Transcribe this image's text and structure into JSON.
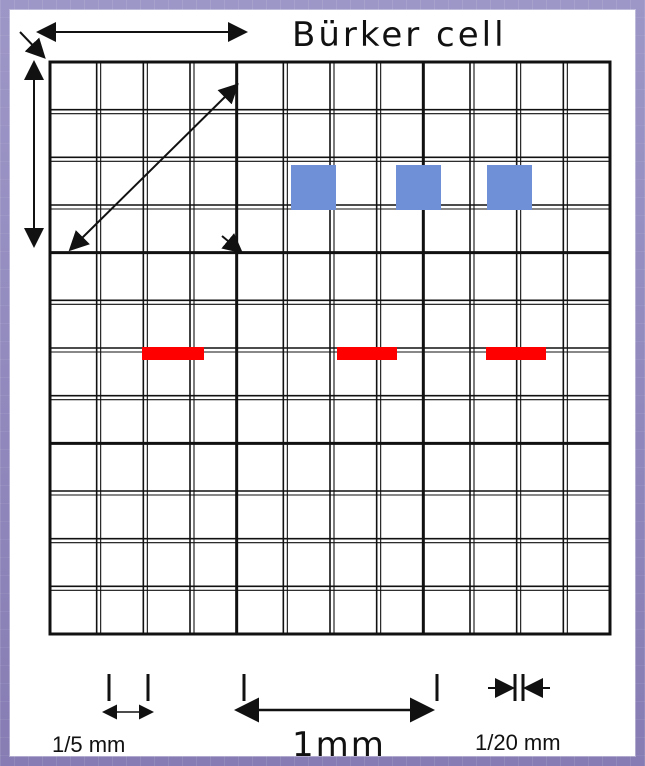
{
  "diagram": {
    "title": "Bürker cell",
    "labels": {
      "one_fifth_mm": "1/5 mm",
      "one_mm": "1mm",
      "one_twentieth_mm": "1/20 mm"
    },
    "colors": {
      "background": "#8f88ba",
      "paper": "#ffffff",
      "grid": "#111111",
      "highlight_squares": "#6f8fd6",
      "highlight_bars": "#ff0000"
    },
    "icons": {
      "left_measure": "vertical-double-arrow",
      "top_measure": "horizontal-double-arrow",
      "diagonal_measure": "diagonal-double-arrow",
      "bottom_measure": "horizontal-double-arrow",
      "small_measure": "inward-arrows"
    }
  }
}
